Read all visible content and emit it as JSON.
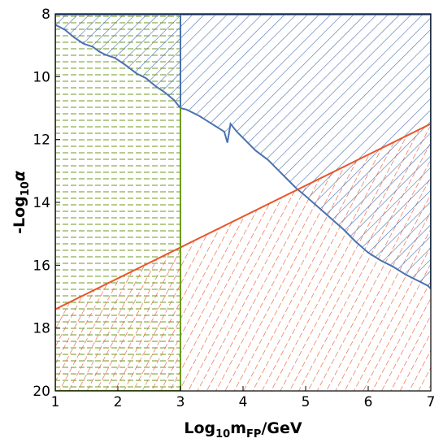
{
  "chart_data": {
    "type": "area",
    "xlabel_main": "Log",
    "xlabel_sub": "10",
    "xlabel_m": "m",
    "xlabel_msub": "FP",
    "xlabel_unit": "/GeV",
    "ylabel_main": "-Log",
    "ylabel_sub": "10",
    "ylabel_greek": "α",
    "xlim": [
      1,
      7
    ],
    "ylim": [
      8,
      20
    ],
    "y_inverted": true,
    "x_ticks": [
      "1",
      "2",
      "3",
      "4",
      "5",
      "6",
      "7"
    ],
    "y_ticks": [
      "8",
      "10",
      "12",
      "14",
      "16",
      "18",
      "20"
    ],
    "grid": false,
    "colors": {
      "blue": "#4a72b0",
      "red": "#e8562a",
      "green": "#6d9a1e",
      "axis": "#000000"
    },
    "regions": [
      {
        "id": "blue",
        "hatch": "diagonal-up",
        "boundary": [
          [
            1,
            8.35
          ],
          [
            1.15,
            8.5
          ],
          [
            1.3,
            8.75
          ],
          [
            1.45,
            8.95
          ],
          [
            1.6,
            9.05
          ],
          [
            1.7,
            9.2
          ],
          [
            1.8,
            9.3
          ],
          [
            1.95,
            9.4
          ],
          [
            2.1,
            9.6
          ],
          [
            2.3,
            9.9
          ],
          [
            2.45,
            10.05
          ],
          [
            2.6,
            10.3
          ],
          [
            2.75,
            10.5
          ],
          [
            2.9,
            10.75
          ],
          [
            3.0,
            11.0
          ],
          [
            3.1,
            11.05
          ],
          [
            3.3,
            11.25
          ],
          [
            3.5,
            11.5
          ],
          [
            3.7,
            11.75
          ],
          [
            3.75,
            12.1
          ],
          [
            3.8,
            11.5
          ],
          [
            3.9,
            11.75
          ],
          [
            4.05,
            12.05
          ],
          [
            4.2,
            12.35
          ],
          [
            4.4,
            12.65
          ],
          [
            4.55,
            12.95
          ],
          [
            4.7,
            13.25
          ],
          [
            4.85,
            13.55
          ],
          [
            5.0,
            13.8
          ],
          [
            5.2,
            14.15
          ],
          [
            5.4,
            14.5
          ],
          [
            5.6,
            14.85
          ],
          [
            5.8,
            15.25
          ],
          [
            6.0,
            15.6
          ],
          [
            6.2,
            15.85
          ],
          [
            6.4,
            16.05
          ],
          [
            6.6,
            16.3
          ],
          [
            6.8,
            16.5
          ],
          [
            6.95,
            16.65
          ],
          [
            7.0,
            16.75
          ]
        ]
      },
      {
        "id": "red",
        "hatch": "diagonal-steep",
        "line": [
          [
            1,
            17.4
          ],
          [
            7,
            11.5
          ]
        ]
      },
      {
        "id": "green",
        "hatch": "horizontal-dashed",
        "x_range": [
          1,
          3
        ]
      }
    ]
  }
}
